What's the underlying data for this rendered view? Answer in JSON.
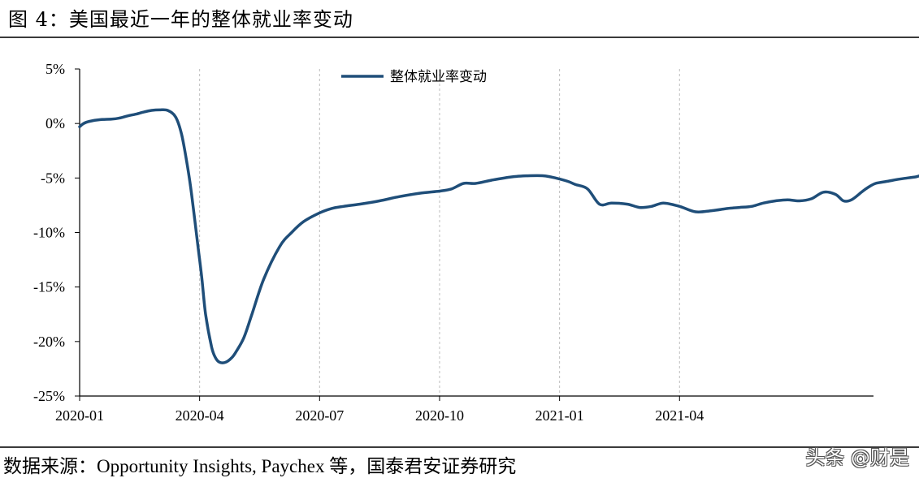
{
  "figure": {
    "title": "图 4：美国最近一年的整体就业率变动",
    "source": "数据来源：Opportunity Insights, Paychex 等，国泰君安证券研究",
    "watermark": "头条 @财是"
  },
  "chart_data": {
    "type": "line",
    "title": "",
    "xlabel": "",
    "ylabel": "",
    "x_ticks": [
      "2020-01",
      "2020-04",
      "2020-07",
      "2020-10",
      "2021-01",
      "2021-04"
    ],
    "y_ticks": [
      "5%",
      "0%",
      "-5%",
      "-10%",
      "-15%",
      "-20%",
      "-25%"
    ],
    "ylim": [
      -25,
      5
    ],
    "x_unit": "months since 2020-01",
    "grid": "vertical dashed at x ticks",
    "legend_position": "top-center",
    "series": [
      {
        "name": "整体就业率变动",
        "color": "#1f4e79",
        "x": [
          0.0,
          0.1,
          0.25,
          0.5,
          0.8,
          1.0,
          1.2,
          1.4,
          1.6,
          1.8,
          2.0,
          2.2,
          2.4,
          2.55,
          2.7,
          2.8,
          2.95,
          3.05,
          3.15,
          3.3,
          3.4,
          3.5,
          3.65,
          3.8,
          3.9,
          4.1,
          4.3,
          4.6,
          5.0,
          5.3,
          5.6,
          6.0,
          6.3,
          6.6,
          7.0,
          7.5,
          8.0,
          8.5,
          9.0,
          9.3,
          9.6,
          9.9,
          10.3,
          10.8,
          11.2,
          11.6,
          11.9,
          12.2,
          12.4,
          12.7,
          13.0,
          13.3,
          13.7,
          14.0,
          14.3,
          14.6,
          15.0,
          15.4,
          15.8,
          16.2,
          16.5,
          16.8,
          17.1,
          17.4,
          17.7,
          18.0,
          18.3,
          18.6,
          18.9,
          19.1,
          19.3,
          19.55,
          19.7,
          19.9,
          20.2,
          20.5,
          20.7,
          20.9,
          21.0
        ],
        "values": [
          -0.3,
          0.0,
          0.2,
          0.35,
          0.4,
          0.5,
          0.7,
          0.85,
          1.05,
          1.2,
          1.25,
          1.2,
          0.6,
          -1.0,
          -4.0,
          -6.5,
          -11.0,
          -14.0,
          -17.5,
          -20.5,
          -21.5,
          -21.9,
          -21.9,
          -21.5,
          -21.0,
          -19.7,
          -17.6,
          -14.3,
          -11.3,
          -10.0,
          -9.0,
          -8.2,
          -7.8,
          -7.6,
          -7.4,
          -7.1,
          -6.7,
          -6.4,
          -6.2,
          -6.0,
          -5.5,
          -5.5,
          -5.2,
          -4.9,
          -4.8,
          -4.8,
          -5.0,
          -5.3,
          -5.6,
          -6.0,
          -7.4,
          -7.3,
          -7.4,
          -7.7,
          -7.6,
          -7.3,
          -7.6,
          -8.1,
          -8.0,
          -7.8,
          -7.7,
          -7.6,
          -7.3,
          -7.1,
          -7.0,
          -7.1,
          -6.9,
          -6.3,
          -6.5,
          -7.1,
          -7.0,
          -6.3,
          -5.9,
          -5.5,
          -5.3,
          -5.1,
          -5.0,
          -4.9,
          -4.8
        ]
      }
    ]
  }
}
